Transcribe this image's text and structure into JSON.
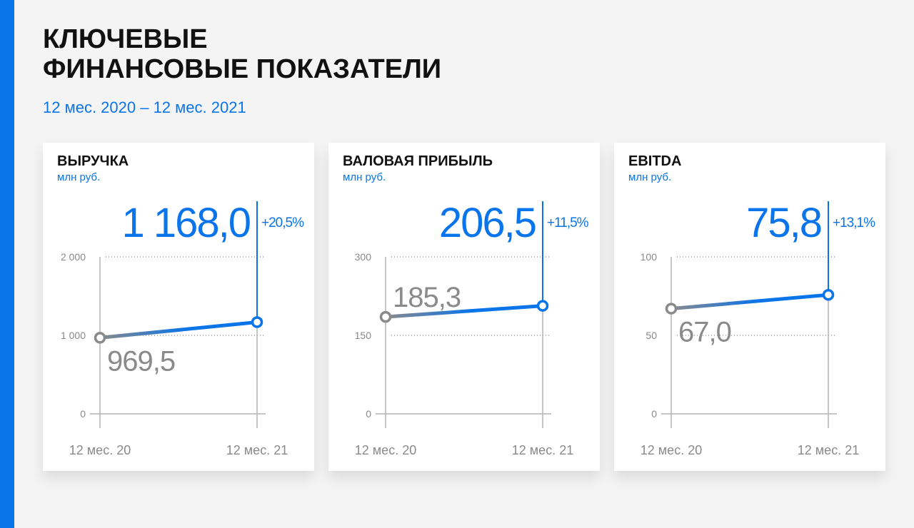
{
  "header": {
    "title_line1": "КЛЮЧЕВЫЕ",
    "title_line2": "ФИНАНСОВЫЕ ПОКАЗАТЕЛИ",
    "period": "12 мес. 2020 – 12 мес. 2021"
  },
  "colors": {
    "accent": "#0a74ea",
    "grey": "#8a8a8a",
    "axis": "#b4b4b4",
    "text": "#111111"
  },
  "chart_data": [
    {
      "type": "line",
      "title": "ВЫРУЧКА",
      "ylabel": "млн руб.",
      "categories": [
        "12 мес. 20",
        "12 мес. 21"
      ],
      "values": [
        969.5,
        1168.0
      ],
      "value_labels": [
        "969,5",
        "1 168,0"
      ],
      "change": "+20,5%",
      "ylim": [
        0,
        2000
      ],
      "yticks": [
        0,
        1000,
        2000
      ],
      "ytick_labels": [
        "0",
        "1 000",
        "2 000"
      ],
      "start_label_position": "below",
      "grid": true
    },
    {
      "type": "line",
      "title": "ВАЛОВАЯ ПРИБЫЛЬ",
      "ylabel": "млн руб.",
      "categories": [
        "12 мес. 20",
        "12 мес. 21"
      ],
      "values": [
        185.3,
        206.5
      ],
      "value_labels": [
        "185,3",
        "206,5"
      ],
      "change": "+11,5%",
      "ylim": [
        0,
        300
      ],
      "yticks": [
        0,
        150,
        300
      ],
      "ytick_labels": [
        "0",
        "150",
        "300"
      ],
      "start_label_position": "above",
      "grid": true
    },
    {
      "type": "line",
      "title": "EBITDA",
      "ylabel": "млн руб.",
      "categories": [
        "12 мес. 20",
        "12 мес. 21"
      ],
      "values": [
        67.0,
        75.8
      ],
      "value_labels": [
        "67,0",
        "75,8"
      ],
      "change": "+13,1%",
      "ylim": [
        0,
        100
      ],
      "yticks": [
        0,
        50,
        100
      ],
      "ytick_labels": [
        "0",
        "50",
        "100"
      ],
      "start_label_position": "below",
      "grid": true
    }
  ]
}
